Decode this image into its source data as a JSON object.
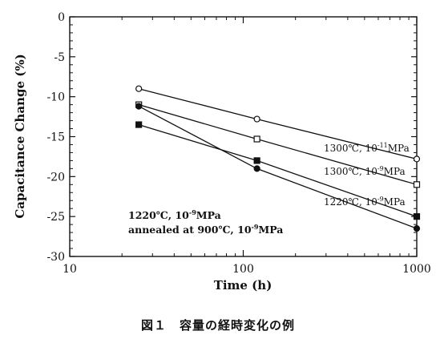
{
  "chart_data": {
    "type": "line",
    "xscale": "log",
    "xlim": [
      10,
      1000
    ],
    "ylim": [
      -30,
      0
    ],
    "xticks": [
      10,
      100,
      1000
    ],
    "yticks": [
      0,
      -5,
      -10,
      -15,
      -20,
      -25,
      -30
    ],
    "xlabel": "Time (h)",
    "ylabel": "Capacitance Change (%)",
    "series": [
      {
        "marker": "open-circle",
        "x": [
          25,
          120,
          1000
        ],
        "y": [
          -9.0,
          -12.8,
          -17.8
        ]
      },
      {
        "marker": "open-square",
        "x": [
          25,
          120,
          1000
        ],
        "y": [
          -11.0,
          -15.3,
          -21.0
        ]
      },
      {
        "marker": "filled-square",
        "x": [
          25,
          120,
          1000
        ],
        "y": [
          -13.5,
          -18.0,
          -25.0
        ]
      },
      {
        "marker": "filled-circle",
        "x": [
          25,
          120,
          1000
        ],
        "y": [
          -11.2,
          -19.0,
          -26.5
        ]
      }
    ],
    "annotations": {
      "s1": {
        "main": "1300℃, 10",
        "sup": "-11",
        "unit": "MPa"
      },
      "s2": {
        "main": "1300℃, 10",
        "sup": "-9",
        "unit": "MPa"
      },
      "s3": {
        "main": "1220℃, 10",
        "sup": "-9",
        "unit": "MPa"
      },
      "s4a": {
        "main": "1220℃, 10",
        "sup": "-9",
        "unit": "MPa"
      },
      "s4b": {
        "main": "annealed at 900℃, 10",
        "sup": "-9",
        "unit": "MPa"
      }
    }
  },
  "caption": "図１　容量の経時変化の例"
}
